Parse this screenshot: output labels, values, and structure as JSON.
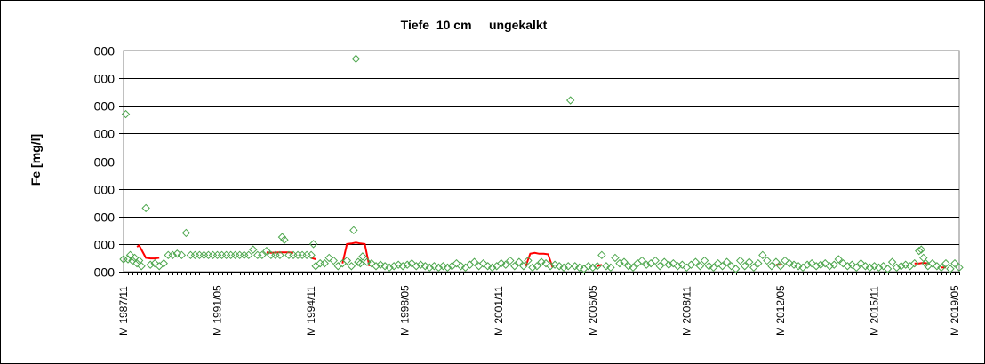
{
  "chart_data": {
    "type": "scatter",
    "title": "Tiefe  10 cm     ungekalkt",
    "ylabel": "Fe [mg/l]",
    "xlabel": "",
    "ylim": [
      0,
      8
    ],
    "yticks": [
      0,
      1,
      2,
      3,
      4,
      5,
      6,
      7,
      8
    ],
    "ytick_labels": [
      "000",
      "000",
      "000",
      "000",
      "000",
      "000",
      "000",
      "000",
      "000"
    ],
    "xlim": [
      0,
      374
    ],
    "xticks": [
      {
        "label": "M 1987/11",
        "index": 0
      },
      {
        "label": "M 1991/05",
        "index": 42
      },
      {
        "label": "M 1994/11",
        "index": 84
      },
      {
        "label": "M 1998/05",
        "index": 126
      },
      {
        "label": "M 2001/11",
        "index": 168
      },
      {
        "label": "M 2005/05",
        "index": 210
      },
      {
        "label": "M 2008/11",
        "index": 252
      },
      {
        "label": "M 2012/05",
        "index": 294
      },
      {
        "label": "M 2015/11",
        "index": 336
      },
      {
        "label": "M 2019/05",
        "index": 372
      }
    ],
    "grid": true,
    "legend": "none",
    "series": [
      {
        "kind": "markers",
        "color": "#4ca64c",
        "marker": "diamond-open",
        "points": [
          [
            0,
            0.45
          ],
          [
            1,
            5.7
          ],
          [
            2,
            0.45
          ],
          [
            3,
            0.6
          ],
          [
            4,
            0.4
          ],
          [
            5,
            0.5
          ],
          [
            6,
            0.3
          ],
          [
            7,
            0.4
          ],
          [
            8,
            0.2
          ],
          [
            10,
            2.3
          ],
          [
            12,
            0.25
          ],
          [
            14,
            0.3
          ],
          [
            16,
            0.2
          ],
          [
            18,
            0.3
          ],
          [
            20,
            0.6
          ],
          [
            22,
            0.6
          ],
          [
            24,
            0.65
          ],
          [
            26,
            0.6
          ],
          [
            28,
            1.4
          ],
          [
            30,
            0.6
          ],
          [
            32,
            0.6
          ],
          [
            34,
            0.6
          ],
          [
            36,
            0.6
          ],
          [
            38,
            0.6
          ],
          [
            40,
            0.6
          ],
          [
            42,
            0.6
          ],
          [
            44,
            0.6
          ],
          [
            46,
            0.6
          ],
          [
            48,
            0.6
          ],
          [
            50,
            0.6
          ],
          [
            52,
            0.6
          ],
          [
            54,
            0.6
          ],
          [
            56,
            0.6
          ],
          [
            58,
            0.8
          ],
          [
            60,
            0.6
          ],
          [
            62,
            0.6
          ],
          [
            64,
            0.75
          ],
          [
            66,
            0.6
          ],
          [
            68,
            0.6
          ],
          [
            70,
            0.6
          ],
          [
            71,
            1.25
          ],
          [
            72,
            1.15
          ],
          [
            74,
            0.6
          ],
          [
            76,
            0.6
          ],
          [
            78,
            0.6
          ],
          [
            80,
            0.6
          ],
          [
            82,
            0.6
          ],
          [
            84,
            0.6
          ],
          [
            85,
            1.0
          ],
          [
            86,
            0.2
          ],
          [
            88,
            0.3
          ],
          [
            90,
            0.3
          ],
          [
            92,
            0.5
          ],
          [
            94,
            0.4
          ],
          [
            96,
            0.2
          ],
          [
            98,
            0.3
          ],
          [
            100,
            0.4
          ],
          [
            102,
            0.2
          ],
          [
            103,
            1.5
          ],
          [
            104,
            7.7
          ],
          [
            105,
            0.35
          ],
          [
            106,
            0.3
          ],
          [
            107,
            0.55
          ],
          [
            109,
            0.35
          ],
          [
            111,
            0.3
          ],
          [
            113,
            0.2
          ],
          [
            115,
            0.25
          ],
          [
            117,
            0.2
          ],
          [
            119,
            0.15
          ],
          [
            121,
            0.2
          ],
          [
            123,
            0.25
          ],
          [
            125,
            0.2
          ],
          [
            127,
            0.25
          ],
          [
            129,
            0.3
          ],
          [
            131,
            0.2
          ],
          [
            133,
            0.25
          ],
          [
            135,
            0.2
          ],
          [
            137,
            0.15
          ],
          [
            139,
            0.2
          ],
          [
            141,
            0.15
          ],
          [
            143,
            0.2
          ],
          [
            145,
            0.15
          ],
          [
            147,
            0.2
          ],
          [
            149,
            0.3
          ],
          [
            151,
            0.2
          ],
          [
            153,
            0.15
          ],
          [
            155,
            0.25
          ],
          [
            157,
            0.35
          ],
          [
            159,
            0.2
          ],
          [
            161,
            0.3
          ],
          [
            163,
            0.2
          ],
          [
            165,
            0.15
          ],
          [
            167,
            0.2
          ],
          [
            169,
            0.3
          ],
          [
            171,
            0.25
          ],
          [
            173,
            0.4
          ],
          [
            175,
            0.2
          ],
          [
            177,
            0.35
          ],
          [
            179,
            0.2
          ],
          [
            181,
            0.4
          ],
          [
            183,
            0.15
          ],
          [
            185,
            0.2
          ],
          [
            187,
            0.35
          ],
          [
            189,
            0.3
          ],
          [
            191,
            0.2
          ],
          [
            193,
            0.25
          ],
          [
            195,
            0.2
          ],
          [
            197,
            0.15
          ],
          [
            199,
            0.2
          ],
          [
            200,
            6.2
          ],
          [
            202,
            0.2
          ],
          [
            204,
            0.15
          ],
          [
            206,
            0.1
          ],
          [
            208,
            0.2
          ],
          [
            210,
            0.15
          ],
          [
            212,
            0.2
          ],
          [
            214,
            0.6
          ],
          [
            216,
            0.2
          ],
          [
            218,
            0.15
          ],
          [
            220,
            0.5
          ],
          [
            222,
            0.3
          ],
          [
            224,
            0.35
          ],
          [
            226,
            0.2
          ],
          [
            228,
            0.15
          ],
          [
            230,
            0.3
          ],
          [
            232,
            0.4
          ],
          [
            234,
            0.25
          ],
          [
            236,
            0.3
          ],
          [
            238,
            0.4
          ],
          [
            240,
            0.2
          ],
          [
            242,
            0.35
          ],
          [
            244,
            0.25
          ],
          [
            246,
            0.3
          ],
          [
            248,
            0.2
          ],
          [
            250,
            0.25
          ],
          [
            252,
            0.15
          ],
          [
            254,
            0.25
          ],
          [
            256,
            0.35
          ],
          [
            258,
            0.2
          ],
          [
            260,
            0.4
          ],
          [
            262,
            0.2
          ],
          [
            264,
            0.15
          ],
          [
            266,
            0.3
          ],
          [
            268,
            0.2
          ],
          [
            270,
            0.35
          ],
          [
            272,
            0.2
          ],
          [
            274,
            0.1
          ],
          [
            276,
            0.4
          ],
          [
            278,
            0.2
          ],
          [
            280,
            0.35
          ],
          [
            282,
            0.15
          ],
          [
            284,
            0.3
          ],
          [
            286,
            0.6
          ],
          [
            288,
            0.4
          ],
          [
            290,
            0.2
          ],
          [
            292,
            0.35
          ],
          [
            294,
            0.2
          ],
          [
            296,
            0.4
          ],
          [
            298,
            0.3
          ],
          [
            300,
            0.25
          ],
          [
            302,
            0.2
          ],
          [
            304,
            0.15
          ],
          [
            306,
            0.25
          ],
          [
            308,
            0.3
          ],
          [
            310,
            0.2
          ],
          [
            312,
            0.25
          ],
          [
            314,
            0.3
          ],
          [
            316,
            0.2
          ],
          [
            318,
            0.25
          ],
          [
            320,
            0.45
          ],
          [
            322,
            0.3
          ],
          [
            324,
            0.2
          ],
          [
            326,
            0.25
          ],
          [
            328,
            0.15
          ],
          [
            330,
            0.3
          ],
          [
            332,
            0.2
          ],
          [
            334,
            0.15
          ],
          [
            336,
            0.2
          ],
          [
            338,
            0.15
          ],
          [
            340,
            0.2
          ],
          [
            342,
            0.1
          ],
          [
            344,
            0.35
          ],
          [
            346,
            0.15
          ],
          [
            348,
            0.2
          ],
          [
            350,
            0.25
          ],
          [
            352,
            0.2
          ],
          [
            354,
            0.3
          ],
          [
            356,
            0.75
          ],
          [
            357,
            0.8
          ],
          [
            358,
            0.5
          ],
          [
            359,
            0.3
          ],
          [
            360,
            0.2
          ],
          [
            362,
            0.3
          ],
          [
            364,
            0.2
          ],
          [
            366,
            0.15
          ],
          [
            368,
            0.3
          ],
          [
            370,
            0.1
          ],
          [
            372,
            0.3
          ],
          [
            374,
            0.15
          ]
        ]
      },
      {
        "kind": "line",
        "color": "#ff0000",
        "segments": [
          [
            [
              6,
              0.9
            ],
            [
              7,
              0.95
            ],
            [
              8,
              0.8
            ],
            [
              10,
              0.5
            ],
            [
              12,
              0.48
            ],
            [
              14,
              0.48
            ],
            [
              16,
              0.5
            ]
          ],
          [
            [
              64,
              0.7
            ],
            [
              66,
              0.68
            ],
            [
              70,
              0.7
            ],
            [
              74,
              0.7
            ],
            [
              76,
              0.68
            ]
          ],
          [
            [
              84,
              0.5
            ],
            [
              86,
              0.45
            ]
          ],
          [
            [
              98,
              0.3
            ],
            [
              100,
              1.0
            ],
            [
              102,
              1.02
            ],
            [
              104,
              1.05
            ],
            [
              106,
              1.02
            ],
            [
              108,
              1.0
            ],
            [
              110,
              0.2
            ]
          ],
          [
            [
              180,
              0.2
            ],
            [
              182,
              0.65
            ],
            [
              184,
              0.68
            ],
            [
              186,
              0.65
            ],
            [
              188,
              0.65
            ],
            [
              190,
              0.63
            ],
            [
              192,
              0.15
            ]
          ],
          [
            [
              212,
              0.2
            ],
            [
              214,
              0.25
            ]
          ],
          [
            [
              292,
              0.25
            ],
            [
              294,
              0.25
            ]
          ],
          [
            [
              354,
              0.3
            ],
            [
              356,
              0.3
            ],
            [
              358,
              0.32
            ],
            [
              360,
              0.3
            ]
          ],
          [
            [
              366,
              0.15
            ],
            [
              368,
              0.15
            ]
          ]
        ]
      }
    ]
  }
}
